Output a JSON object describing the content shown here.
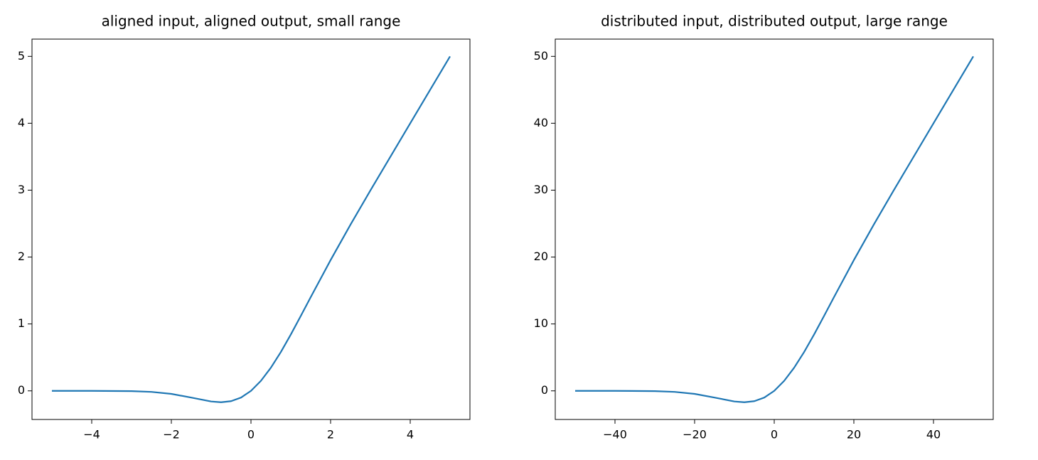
{
  "chart_data": [
    {
      "type": "line",
      "title": "aligned input, aligned output, small range",
      "x": [
        -5,
        -4,
        -3,
        -2.5,
        -2,
        -1.5,
        -1,
        -0.75,
        -0.5,
        -0.25,
        0,
        0.25,
        0.5,
        0.75,
        1,
        1.25,
        1.5,
        2,
        2.5,
        3,
        4,
        5
      ],
      "values": [
        0,
        -0.0001,
        -0.004,
        -0.0155,
        -0.0455,
        -0.1002,
        -0.1587,
        -0.17,
        -0.1543,
        -0.1003,
        0,
        0.1497,
        0.3457,
        0.58,
        0.8413,
        1.118,
        1.3998,
        1.9545,
        2.4845,
        2.996,
        3.9999,
        5
      ],
      "color": "#1f77b4",
      "xlim": [
        -5.5,
        5.5
      ],
      "ylim": [
        -0.428,
        5.258
      ],
      "xticks": [
        {
          "value": -4,
          "label": "−4"
        },
        {
          "value": -2,
          "label": "−2"
        },
        0,
        2,
        4
      ],
      "yticks": [
        0,
        1,
        2,
        3,
        4,
        5
      ]
    },
    {
      "type": "line",
      "title": "distributed input, distributed output, large range",
      "x": [
        -50,
        -40,
        -30,
        -25,
        -20,
        -15,
        -10,
        -7.5,
        -5,
        -2.5,
        0,
        2.5,
        5,
        7.5,
        10,
        12.5,
        15,
        20,
        25,
        30,
        40,
        50
      ],
      "values": [
        0,
        -0.001,
        -0.04,
        -0.155,
        -0.455,
        -1.002,
        -1.587,
        -1.7,
        -1.543,
        -1.003,
        0,
        1.497,
        3.457,
        5.8,
        8.413,
        11.18,
        13.998,
        19.545,
        24.845,
        29.96,
        39.999,
        50
      ],
      "color": "#1f77b4",
      "xlim": [
        -55,
        55
      ],
      "ylim": [
        -4.28,
        52.58
      ],
      "xticks": [
        {
          "value": -40,
          "label": "−40"
        },
        {
          "value": -20,
          "label": "−20"
        },
        0,
        20,
        40
      ],
      "yticks": [
        0,
        10,
        20,
        30,
        40,
        50
      ]
    }
  ]
}
